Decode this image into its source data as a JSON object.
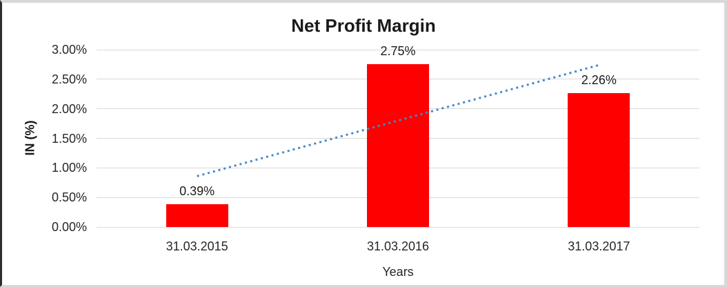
{
  "chart_data": {
    "type": "bar",
    "title": "Net Profit Margin",
    "categories": [
      "31.03.2015",
      "31.03.2016",
      "31.03.2017"
    ],
    "values": [
      0.39,
      2.75,
      2.26
    ],
    "data_labels": [
      "0.39%",
      "2.75%",
      "2.26%"
    ],
    "xlabel": "Years",
    "ylabel": "IN (%)",
    "ylim": [
      0,
      3
    ],
    "ytick_labels": [
      "0.00%",
      "0.50%",
      "1.00%",
      "1.50%",
      "2.00%",
      "2.50%",
      "3.00%"
    ],
    "grid": true,
    "legend": "none",
    "bar_color": "#ff0000",
    "gridline_color": "#d9d9d9",
    "text_color": "#262626",
    "trendline": {
      "type": "linear",
      "style": "dotted",
      "color": "#4a86c8",
      "start_value": 0.86,
      "end_value": 2.74
    }
  }
}
